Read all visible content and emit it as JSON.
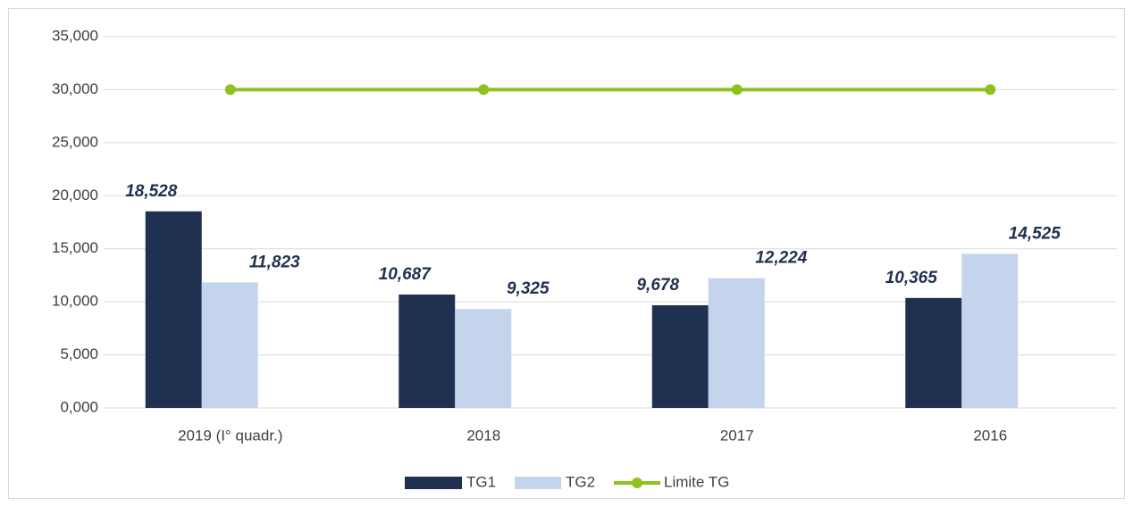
{
  "chart_data": {
    "type": "bar",
    "categories": [
      "2019 (I° quadr.)",
      "2018",
      "2017",
      "2016"
    ],
    "series": [
      {
        "name": "TG1",
        "color": "#1f3050",
        "values": [
          18.528,
          10.687,
          9.678,
          10.365
        ],
        "value_labels": [
          "18,528",
          "10,687",
          "9,678",
          "10,365"
        ]
      },
      {
        "name": "TG2",
        "color": "#c5d4ed",
        "values": [
          11.823,
          9.325,
          12.224,
          14.525
        ],
        "value_labels": [
          "11,823",
          "9,325",
          "12,224",
          "14,525"
        ]
      },
      {
        "name": "Limite TG",
        "color": "#8dc21f",
        "type": "line",
        "values": [
          30,
          30,
          30,
          30
        ]
      }
    ],
    "ylim": [
      0,
      35
    ],
    "yticks": [
      {
        "value": 0,
        "label": "0,000"
      },
      {
        "value": 5,
        "label": "5,000"
      },
      {
        "value": 10,
        "label": "10,000"
      },
      {
        "value": 15,
        "label": "15,000"
      },
      {
        "value": 20,
        "label": "20,000"
      },
      {
        "value": 25,
        "label": "25,000"
      },
      {
        "value": 30,
        "label": "30,000"
      },
      {
        "value": 35,
        "label": "35,000"
      }
    ],
    "grid": true,
    "legend": "bottom"
  }
}
